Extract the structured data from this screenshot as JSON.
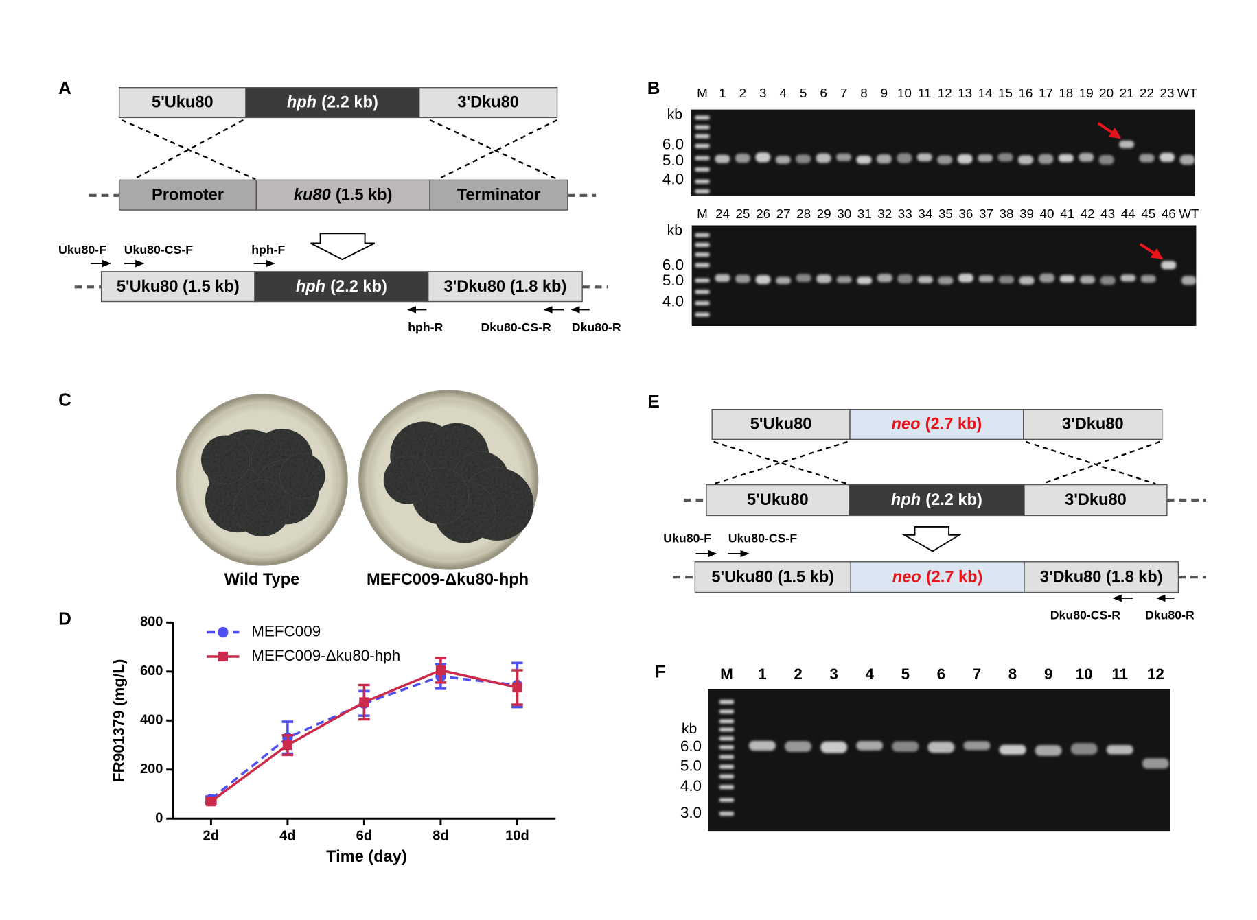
{
  "panel_a": {
    "label": "A",
    "donor": [
      {
        "name": "5'Uku80"
      },
      {
        "name": "hph",
        "size": "(2.2 kb)",
        "style": "italic"
      },
      {
        "name": "3'Dku80"
      }
    ],
    "genome": [
      {
        "name": "Promoter"
      },
      {
        "name": "ku80",
        "size": "(1.5 kb)",
        "style": "italic"
      },
      {
        "name": "Terminator"
      }
    ],
    "result": [
      {
        "name": "5'Uku80 (1.5 kb)"
      },
      {
        "name": "hph",
        "size": "(2.2 kb)",
        "style": "italic"
      },
      {
        "name": "3'Dku80 (1.8 kb)"
      }
    ],
    "primers": [
      "Uku80-F",
      "Uku80-CS-F",
      "hph-F",
      "hph-R",
      "Dku80-CS-R",
      "Dku80-R"
    ]
  },
  "panel_b": {
    "label": "B",
    "gels": [
      {
        "lanes": [
          "M",
          "1",
          "2",
          "3",
          "4",
          "5",
          "6",
          "7",
          "8",
          "9",
          "10",
          "11",
          "12",
          "13",
          "14",
          "15",
          "16",
          "17",
          "18",
          "19",
          "20",
          "21",
          "22",
          "23",
          "WT"
        ],
        "unit": "kb",
        "markers": [
          "6.0",
          "5.0",
          "4.0"
        ]
      },
      {
        "lanes": [
          "M",
          "24",
          "25",
          "26",
          "27",
          "28",
          "29",
          "30",
          "31",
          "32",
          "33",
          "34",
          "35",
          "36",
          "37",
          "38",
          "39",
          "40",
          "41",
          "42",
          "43",
          "44",
          "45",
          "46",
          "WT"
        ],
        "unit": "kb",
        "markers": [
          "6.0",
          "5.0",
          "4.0"
        ]
      }
    ]
  },
  "panel_c": {
    "label": "C",
    "captions": [
      "Wild Type",
      "MEFC009-Δku80-hph"
    ]
  },
  "chart_data": {
    "type": "line",
    "label": "D",
    "y_label": "FR901379 (mg/L)",
    "x_label": "Time (day)",
    "categories": [
      "2d",
      "4d",
      "6d",
      "8d",
      "10d"
    ],
    "ylim": [
      0,
      800
    ],
    "yticks": [
      0,
      200,
      400,
      600,
      800
    ],
    "series": [
      {
        "name": "MEFC009",
        "color": "#4f4ff0",
        "dashed": true,
        "marker": "circle",
        "values": [
          80,
          330,
          470,
          580,
          545
        ],
        "errors": [
          10,
          65,
          50,
          50,
          90
        ]
      },
      {
        "name": "MEFC009-Δku80-hph",
        "color": "#cc2a4a",
        "dashed": false,
        "marker": "square",
        "values": [
          70,
          300,
          475,
          605,
          535
        ],
        "errors": [
          10,
          40,
          70,
          50,
          70
        ]
      }
    ]
  },
  "panel_e": {
    "label": "E",
    "donor": [
      {
        "name": "5'Uku80"
      },
      {
        "name": "neo",
        "size": "(2.7 kb)",
        "style": "italic",
        "color": "#e8141b"
      },
      {
        "name": "3'Dku80"
      }
    ],
    "genome": [
      {
        "name": "5'Uku80"
      },
      {
        "name": "hph",
        "size": "(2.2 kb)",
        "style": "italic"
      },
      {
        "name": "3'Dku80"
      }
    ],
    "result": [
      {
        "name": "5'Uku80 (1.5 kb)"
      },
      {
        "name": "neo",
        "size": "(2.7 kb)",
        "style": "italic",
        "color": "#e8141b"
      },
      {
        "name": "3'Dku80 (1.8 kb)"
      }
    ],
    "primers": [
      "Uku80-F",
      "Uku80-CS-F",
      "Dku80-CS-R",
      "Dku80-R"
    ]
  },
  "panel_f": {
    "label": "F",
    "lanes": [
      "M",
      "1",
      "2",
      "3",
      "4",
      "5",
      "6",
      "7",
      "8",
      "9",
      "10",
      "11",
      "12"
    ],
    "unit": "kb",
    "markers": [
      "6.0",
      "5.0",
      "4.0",
      "3.0"
    ]
  }
}
